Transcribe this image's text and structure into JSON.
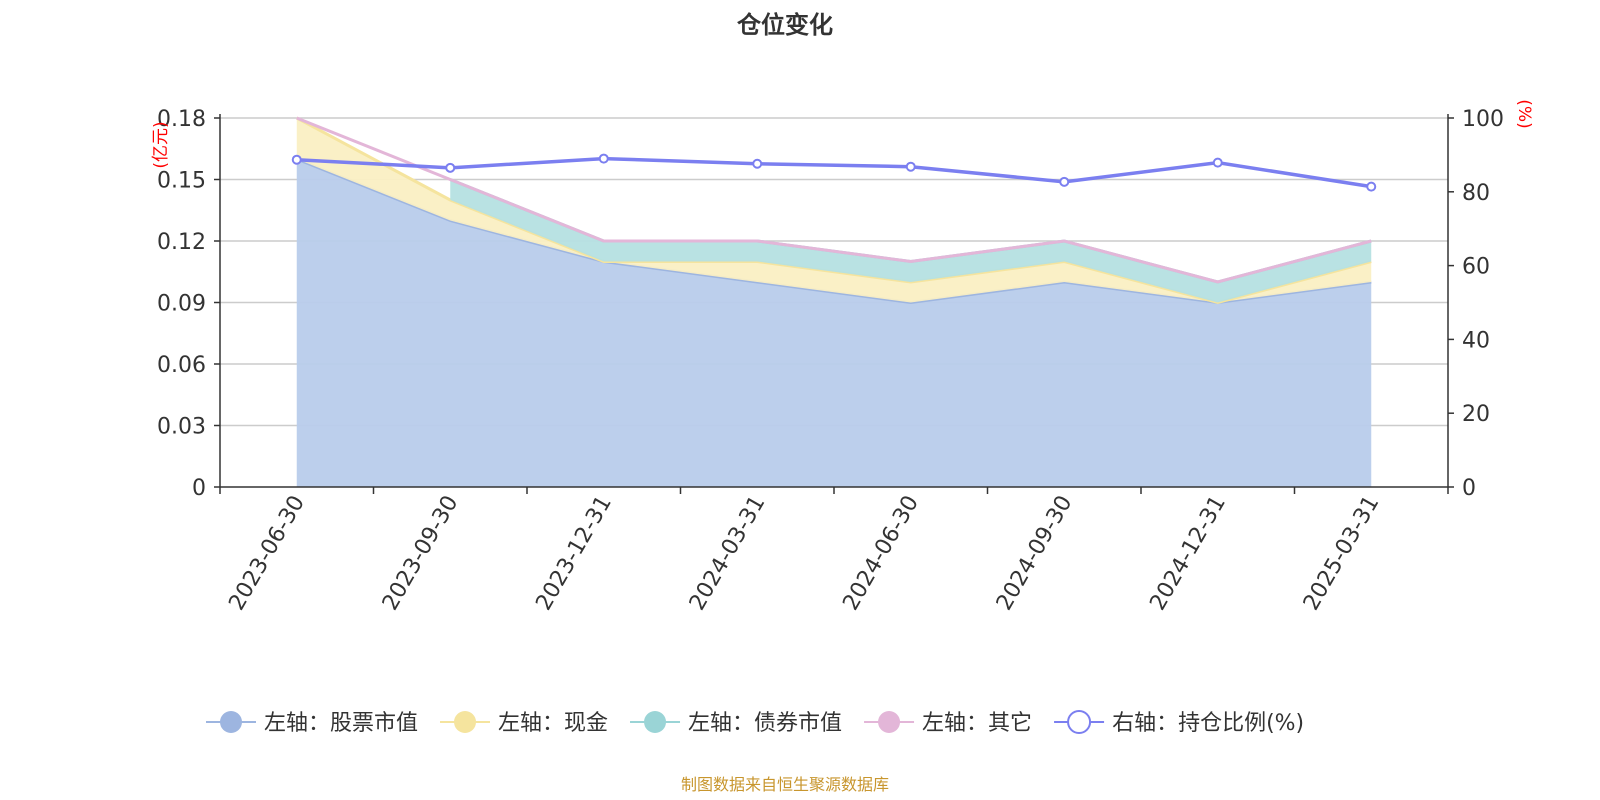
{
  "chart_data": {
    "type": "area",
    "title": "仓位变化",
    "categories": [
      "2023-06-30",
      "2023-09-30",
      "2023-12-31",
      "2024-03-31",
      "2024-06-30",
      "2024-09-30",
      "2024-12-31",
      "2025-03-31"
    ],
    "left_axis": {
      "unit_label": "(亿元)",
      "ylim": [
        0,
        0.18
      ],
      "ticks": [
        "0",
        "0.03",
        "0.06",
        "0.09",
        "0.12",
        "0.15",
        "0.18"
      ]
    },
    "right_axis": {
      "unit_label": "(%)",
      "ylim": [
        0,
        100
      ],
      "ticks": [
        "0",
        "20",
        "40",
        "60",
        "80",
        "100"
      ]
    },
    "stacked_series": [
      {
        "name": "左轴：股票市值",
        "color": "#9db5e0",
        "fill": "#b8cceb",
        "values": [
          0.16,
          0.13,
          0.11,
          0.1,
          0.09,
          0.1,
          0.09,
          0.1
        ]
      },
      {
        "name": "左轴：现金",
        "color": "#f5e49e",
        "fill": "#faefc3",
        "values": [
          0.02,
          0.01,
          0.0,
          0.01,
          0.01,
          0.01,
          0.0,
          0.01
        ]
      },
      {
        "name": "左轴：债券市值",
        "color": "#9ad4d6",
        "fill": "#b5e0e1",
        "values": [
          null,
          0.01,
          0.01,
          0.01,
          0.01,
          0.01,
          0.01,
          0.01
        ]
      },
      {
        "name": "左轴：其它",
        "color": "#e3b6d8",
        "fill": "#e3b6d8",
        "values": [
          0.0,
          0.0,
          0.0,
          0.0,
          0.0,
          0.0,
          0.0,
          0.0
        ]
      }
    ],
    "line_series": {
      "name": "右轴：持仓比例(%)",
      "color": "#7b7ff0",
      "values": [
        88.7,
        86.5,
        89.0,
        87.6,
        86.8,
        82.7,
        87.9,
        81.4
      ]
    },
    "grid": true,
    "legend_position": "bottom"
  },
  "source_note": "制图数据来自恒生聚源数据库"
}
